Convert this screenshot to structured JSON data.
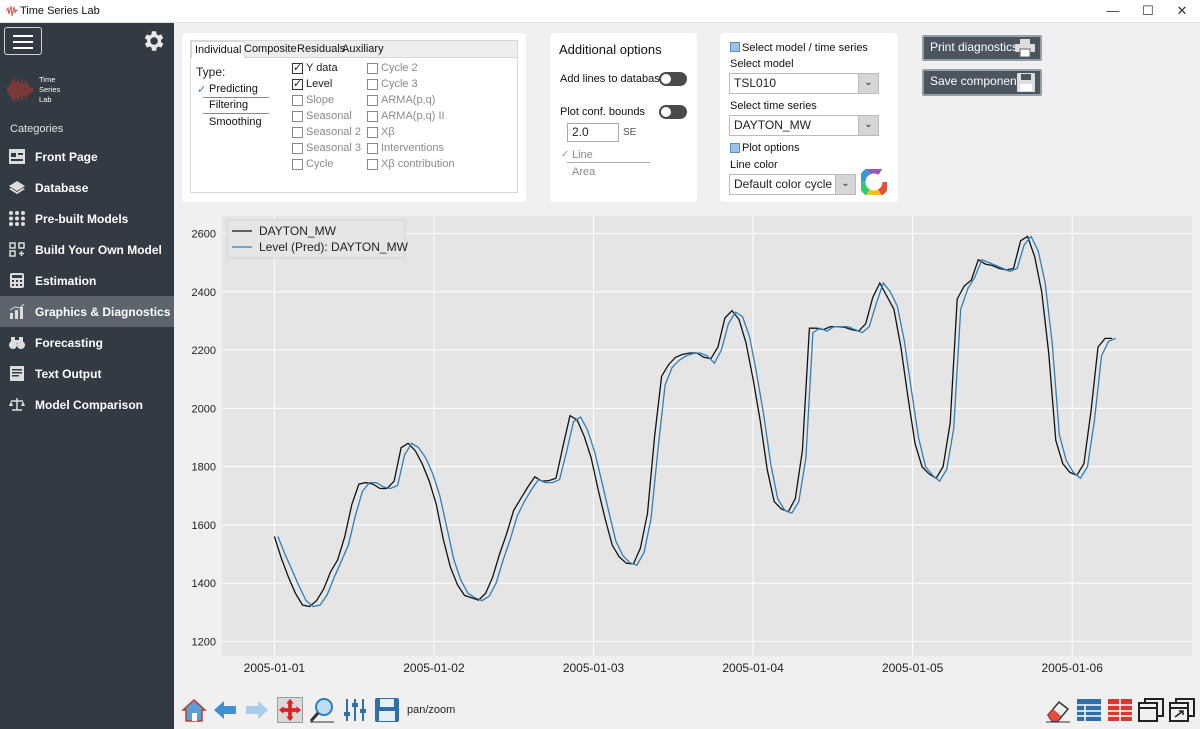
{
  "window": {
    "title": "Time Series Lab",
    "minimize": "—",
    "maximize": "☐",
    "close": "✕"
  },
  "sidebar": {
    "logo_lines": [
      "Time",
      "Series",
      "Lab"
    ],
    "categories_label": "Categories",
    "items": [
      {
        "label": "Front Page",
        "icon": "front-page-icon",
        "active": false
      },
      {
        "label": "Database",
        "icon": "database-icon",
        "active": false
      },
      {
        "label": "Pre-built Models",
        "icon": "grid-icon",
        "active": false
      },
      {
        "label": "Build Your Own Model",
        "icon": "build-model-icon",
        "active": false
      },
      {
        "label": "Estimation",
        "icon": "estimation-icon",
        "active": false
      },
      {
        "label": "Graphics & Diagnostics",
        "icon": "bar-chart-icon",
        "active": true
      },
      {
        "label": "Forecasting",
        "icon": "binoculars-icon",
        "active": false
      },
      {
        "label": "Text Output",
        "icon": "text-output-icon",
        "active": false
      },
      {
        "label": "Model Comparison",
        "icon": "balance-icon",
        "active": false
      }
    ]
  },
  "tabs": {
    "labels": [
      "Individual",
      "Composite",
      "Residuals",
      "Auxiliary"
    ],
    "type_label": "Type:",
    "type_options": [
      "Predicting",
      "Filtering",
      "Smoothing"
    ],
    "checkboxes_col1": [
      {
        "label": "Y data",
        "checked": true,
        "enabled": true
      },
      {
        "label": "Level",
        "checked": true,
        "enabled": true
      },
      {
        "label": "Slope",
        "checked": false,
        "enabled": false
      },
      {
        "label": "Seasonal",
        "checked": false,
        "enabled": false
      },
      {
        "label": "Seasonal 2",
        "checked": false,
        "enabled": false
      },
      {
        "label": "Seasonal 3",
        "checked": false,
        "enabled": false
      },
      {
        "label": "Cycle",
        "checked": false,
        "enabled": false
      }
    ],
    "checkboxes_col2": [
      {
        "label": "Cycle 2",
        "checked": false,
        "enabled": false
      },
      {
        "label": "Cycle 3",
        "checked": false,
        "enabled": false
      },
      {
        "label": "ARMA(p,q)",
        "checked": false,
        "enabled": false
      },
      {
        "label": "ARMA(p,q) II",
        "checked": false,
        "enabled": false
      },
      {
        "label": "Xβ",
        "checked": false,
        "enabled": false
      },
      {
        "label": "Interventions",
        "checked": false,
        "enabled": false
      },
      {
        "label": "Xβ contribution",
        "checked": false,
        "enabled": false
      }
    ]
  },
  "additional": {
    "title": "Additional options",
    "add_lines": "Add lines to database",
    "plot_conf": "Plot conf. bounds",
    "conf_value": "2.0",
    "se": "SE",
    "bound_styles": [
      "Line",
      "Area"
    ]
  },
  "model_select": {
    "header": "Select model / time series",
    "select_model_label": "Select model",
    "model_value": "TSL010",
    "select_series_label": "Select time series",
    "series_value": "DAYTON_MW",
    "plot_options": "Plot options",
    "line_color_label": "Line color",
    "line_color_value": "Default color cycle"
  },
  "buttons": {
    "print": "Print diagnostics",
    "save": "Save components"
  },
  "toolbar": {
    "mode": "pan/zoom"
  },
  "chart_data": {
    "type": "line",
    "x_ticks": [
      "2005-01-01",
      "2005-01-02",
      "2005-01-03",
      "2005-01-04",
      "2005-01-05",
      "2005-01-06"
    ],
    "ylim": [
      1150,
      2660
    ],
    "y_ticks": [
      1200,
      1400,
      1600,
      1800,
      2000,
      2200,
      2400,
      2600
    ],
    "grid": true,
    "legend_position": "top-left",
    "series": [
      {
        "name": "DAYTON_MW",
        "color": "#111111",
        "values": [
          1560,
          1485,
          1420,
          1365,
          1325,
          1320,
          1340,
          1380,
          1440,
          1480,
          1560,
          1670,
          1740,
          1745,
          1740,
          1725,
          1725,
          1750,
          1865,
          1880,
          1855,
          1810,
          1750,
          1670,
          1550,
          1455,
          1395,
          1358,
          1350,
          1342,
          1365,
          1420,
          1500,
          1570,
          1650,
          1690,
          1730,
          1765,
          1750,
          1752,
          1760,
          1870,
          1975,
          1960,
          1905,
          1830,
          1720,
          1620,
          1530,
          1490,
          1468,
          1466,
          1520,
          1640,
          1900,
          2110,
          2150,
          2175,
          2185,
          2190,
          2190,
          2175,
          2170,
          2210,
          2310,
          2335,
          2305,
          2225,
          2100,
          1960,
          1790,
          1680,
          1655,
          1645,
          1690,
          1855,
          2275,
          2275,
          2270,
          2280,
          2280,
          2278,
          2270,
          2265,
          2290,
          2380,
          2430,
          2385,
          2340,
          2210,
          2040,
          1880,
          1800,
          1775,
          1760,
          1800,
          1950,
          2375,
          2420,
          2440,
          2510,
          2495,
          2490,
          2480,
          2475,
          2480,
          2575,
          2590,
          2520,
          2400,
          2190,
          1890,
          1810,
          1780,
          1770,
          1810,
          1990,
          2210,
          2240,
          2240
        ]
      },
      {
        "name": "Level (Pred): DAYTON_MW",
        "color": "#2f7ebd",
        "values": [
          1560,
          1500,
          1445,
          1390,
          1340,
          1320,
          1325,
          1360,
          1420,
          1475,
          1530,
          1630,
          1715,
          1745,
          1745,
          1730,
          1725,
          1735,
          1840,
          1880,
          1865,
          1830,
          1775,
          1700,
          1590,
          1480,
          1410,
          1365,
          1350,
          1340,
          1355,
          1400,
          1480,
          1550,
          1630,
          1680,
          1720,
          1755,
          1745,
          1745,
          1755,
          1850,
          1955,
          1970,
          1925,
          1850,
          1750,
          1645,
          1545,
          1495,
          1470,
          1462,
          1505,
          1620,
          1860,
          2080,
          2140,
          2165,
          2180,
          2188,
          2190,
          2180,
          2155,
          2200,
          2290,
          2330,
          2315,
          2245,
          2120,
          1980,
          1810,
          1690,
          1650,
          1640,
          1680,
          1830,
          2260,
          2275,
          2265,
          2280,
          2280,
          2280,
          2270,
          2260,
          2280,
          2360,
          2430,
          2400,
          2350,
          2230,
          2060,
          1900,
          1800,
          1770,
          1750,
          1790,
          1930,
          2340,
          2410,
          2450,
          2510,
          2500,
          2490,
          2480,
          2470,
          2480,
          2560,
          2590,
          2540,
          2430,
          2220,
          1910,
          1820,
          1780,
          1760,
          1800,
          1960,
          2180,
          2230,
          2240
        ]
      }
    ]
  }
}
